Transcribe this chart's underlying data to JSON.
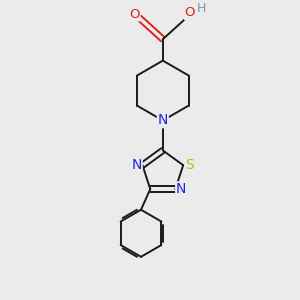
{
  "background_color": "#ebebeb",
  "bond_color": "#1a1a1a",
  "figsize": [
    3.0,
    3.0
  ],
  "dpi": 100,
  "atom_colors": {
    "C": "#1a1a1a",
    "N": "#2020dd",
    "O": "#dd2020",
    "S": "#bbbb00",
    "H": "#6fa0a0"
  },
  "font_size": 8.5,
  "lw": 1.4
}
